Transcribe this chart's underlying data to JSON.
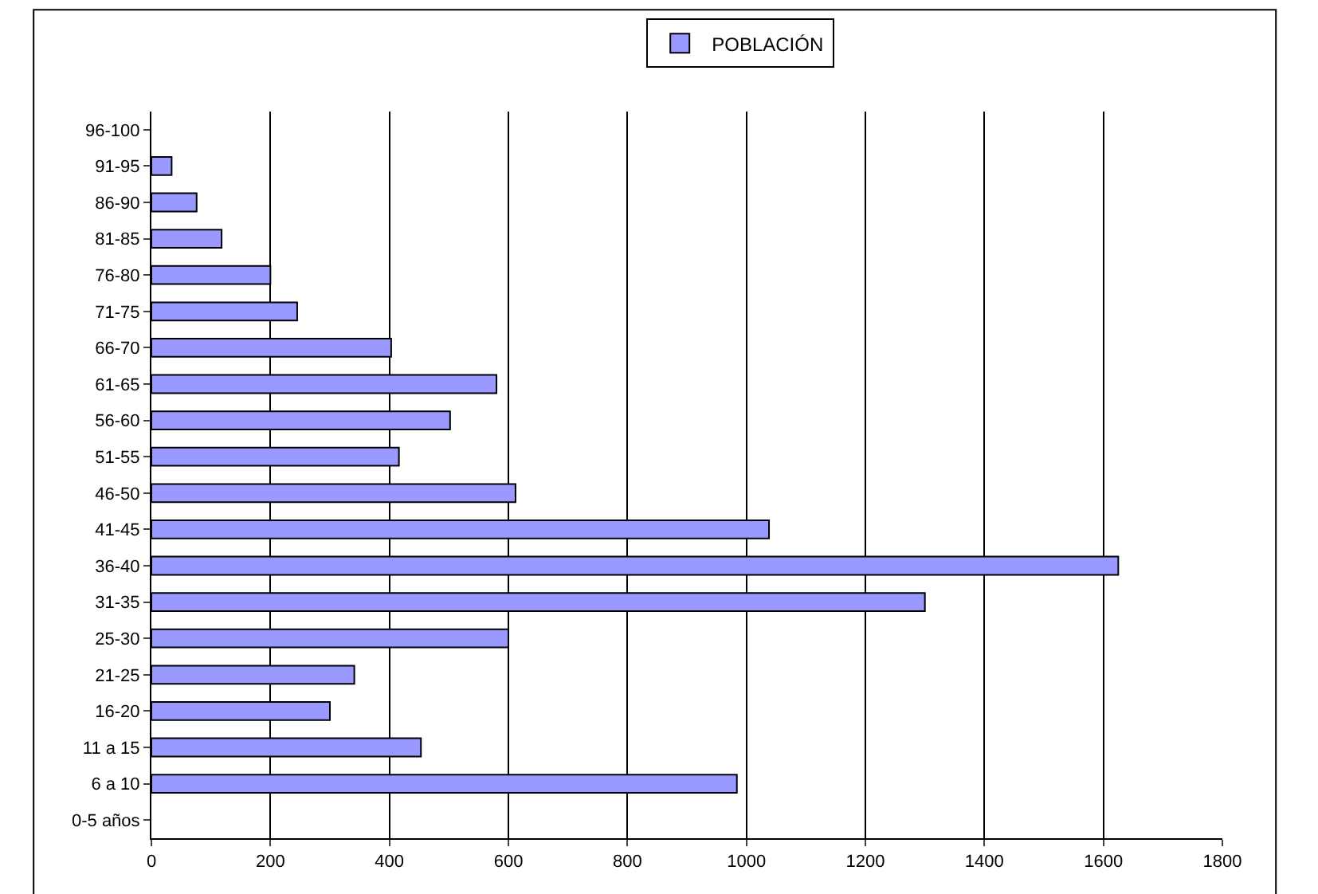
{
  "chart_data": {
    "type": "bar",
    "orientation": "horizontal",
    "categories": [
      "96-100",
      "91-95",
      "86-90",
      "81-85",
      "76-80",
      "71-75",
      "66-70",
      "61-65",
      "56-60",
      "51-55",
      "46-50",
      "41-45",
      "36-40",
      "31-35",
      "25-30",
      "21-25",
      "16-20",
      "11 a 15",
      "6 a 10",
      "0-5 años"
    ],
    "series": [
      {
        "name": "POBLACIÓN",
        "color": "#9999ff",
        "values": [
          null,
          34,
          76,
          118,
          200,
          245,
          403,
          580,
          502,
          416,
          612,
          1038,
          1625,
          1300,
          600,
          341,
          300,
          453,
          984,
          null
        ]
      }
    ],
    "xlim": [
      0,
      1800
    ],
    "xticks": [
      0,
      200,
      400,
      600,
      800,
      1000,
      1200,
      1400,
      1600,
      1800
    ],
    "grid": "x",
    "legend": "top"
  }
}
